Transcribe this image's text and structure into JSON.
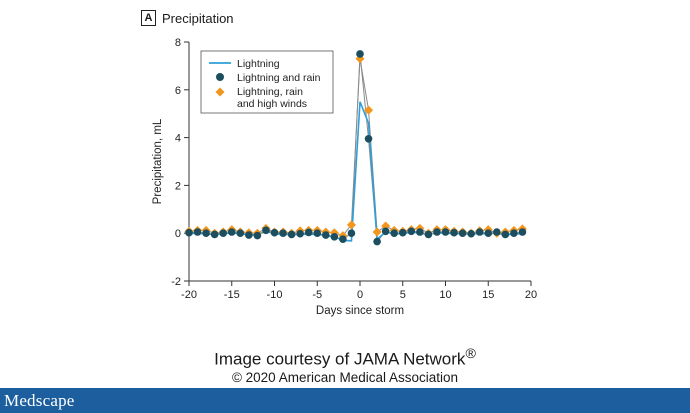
{
  "panel": {
    "letter": "A",
    "title": "Precipitation"
  },
  "credit": {
    "line1_prefix": "Image courtesy of JAMA Network",
    "line1_mark": "®",
    "line2": "© 2020 American Medical Association"
  },
  "footer": {
    "logo": "Medscape"
  },
  "colors": {
    "lightning": "#2e9fd8",
    "lightning_rain": "#1d4e5f",
    "lightning_rain_winds": "#f2961e",
    "footer": "#1d5f9e"
  },
  "chart_data": {
    "type": "line",
    "xlabel": "Days since storm",
    "ylabel": "Precipitation, mL",
    "xlim": [
      -20,
      20
    ],
    "ylim": [
      -2,
      8
    ],
    "x_ticks": [
      -20,
      -15,
      -10,
      -5,
      0,
      5,
      10,
      15,
      20
    ],
    "y_ticks": [
      -2,
      0,
      2,
      4,
      6,
      8
    ],
    "grid": false,
    "legend_position": "top-left",
    "x": [
      -20,
      -19,
      -18,
      -17,
      -16,
      -15,
      -14,
      -13,
      -12,
      -11,
      -10,
      -9,
      -8,
      -7,
      -6,
      -5,
      -4,
      -3,
      -2,
      -1,
      0,
      1,
      2,
      3,
      4,
      5,
      6,
      7,
      8,
      9,
      10,
      11,
      12,
      13,
      14,
      15,
      16,
      17,
      18,
      19
    ],
    "series": [
      {
        "name": "Lightning",
        "marker": "line",
        "values": [
          -0.02,
          0.0,
          -0.03,
          -0.05,
          -0.02,
          0.02,
          -0.03,
          -0.05,
          -0.06,
          0.08,
          -0.02,
          -0.05,
          -0.06,
          -0.05,
          -0.04,
          -0.05,
          -0.1,
          -0.15,
          -0.3,
          -0.32,
          5.5,
          4.6,
          -0.25,
          0.05,
          -0.02,
          -0.02,
          0.05,
          0.0,
          -0.05,
          0.02,
          0.0,
          -0.02,
          -0.02,
          -0.03,
          -0.02,
          -0.02,
          0.0,
          -0.08,
          -0.03,
          -0.02
        ]
      },
      {
        "name": "Lightning and rain",
        "marker": "circle",
        "values": [
          0.02,
          0.05,
          0.0,
          -0.05,
          0.0,
          0.05,
          0.0,
          -0.08,
          -0.1,
          0.12,
          0.02,
          0.0,
          -0.05,
          -0.02,
          0.03,
          0.0,
          -0.08,
          -0.15,
          -0.25,
          0.0,
          7.5,
          3.95,
          -0.35,
          0.08,
          0.0,
          0.02,
          0.08,
          0.05,
          -0.05,
          0.05,
          0.05,
          0.02,
          0.0,
          -0.02,
          0.05,
          0.0,
          0.05,
          -0.05,
          0.0,
          0.05
        ]
      },
      {
        "name": "Lightning, rain and high winds",
        "marker": "diamond",
        "values": [
          0.08,
          0.12,
          0.12,
          0.0,
          0.05,
          0.15,
          0.05,
          0.02,
          0.0,
          0.2,
          0.05,
          0.05,
          0.0,
          0.1,
          0.12,
          0.12,
          0.05,
          0.02,
          -0.1,
          0.35,
          7.3,
          5.15,
          0.05,
          0.3,
          0.12,
          0.08,
          0.15,
          0.2,
          0.0,
          0.15,
          0.15,
          0.08,
          0.05,
          0.0,
          0.1,
          0.15,
          0.0,
          0.05,
          0.12,
          0.18
        ]
      }
    ]
  }
}
